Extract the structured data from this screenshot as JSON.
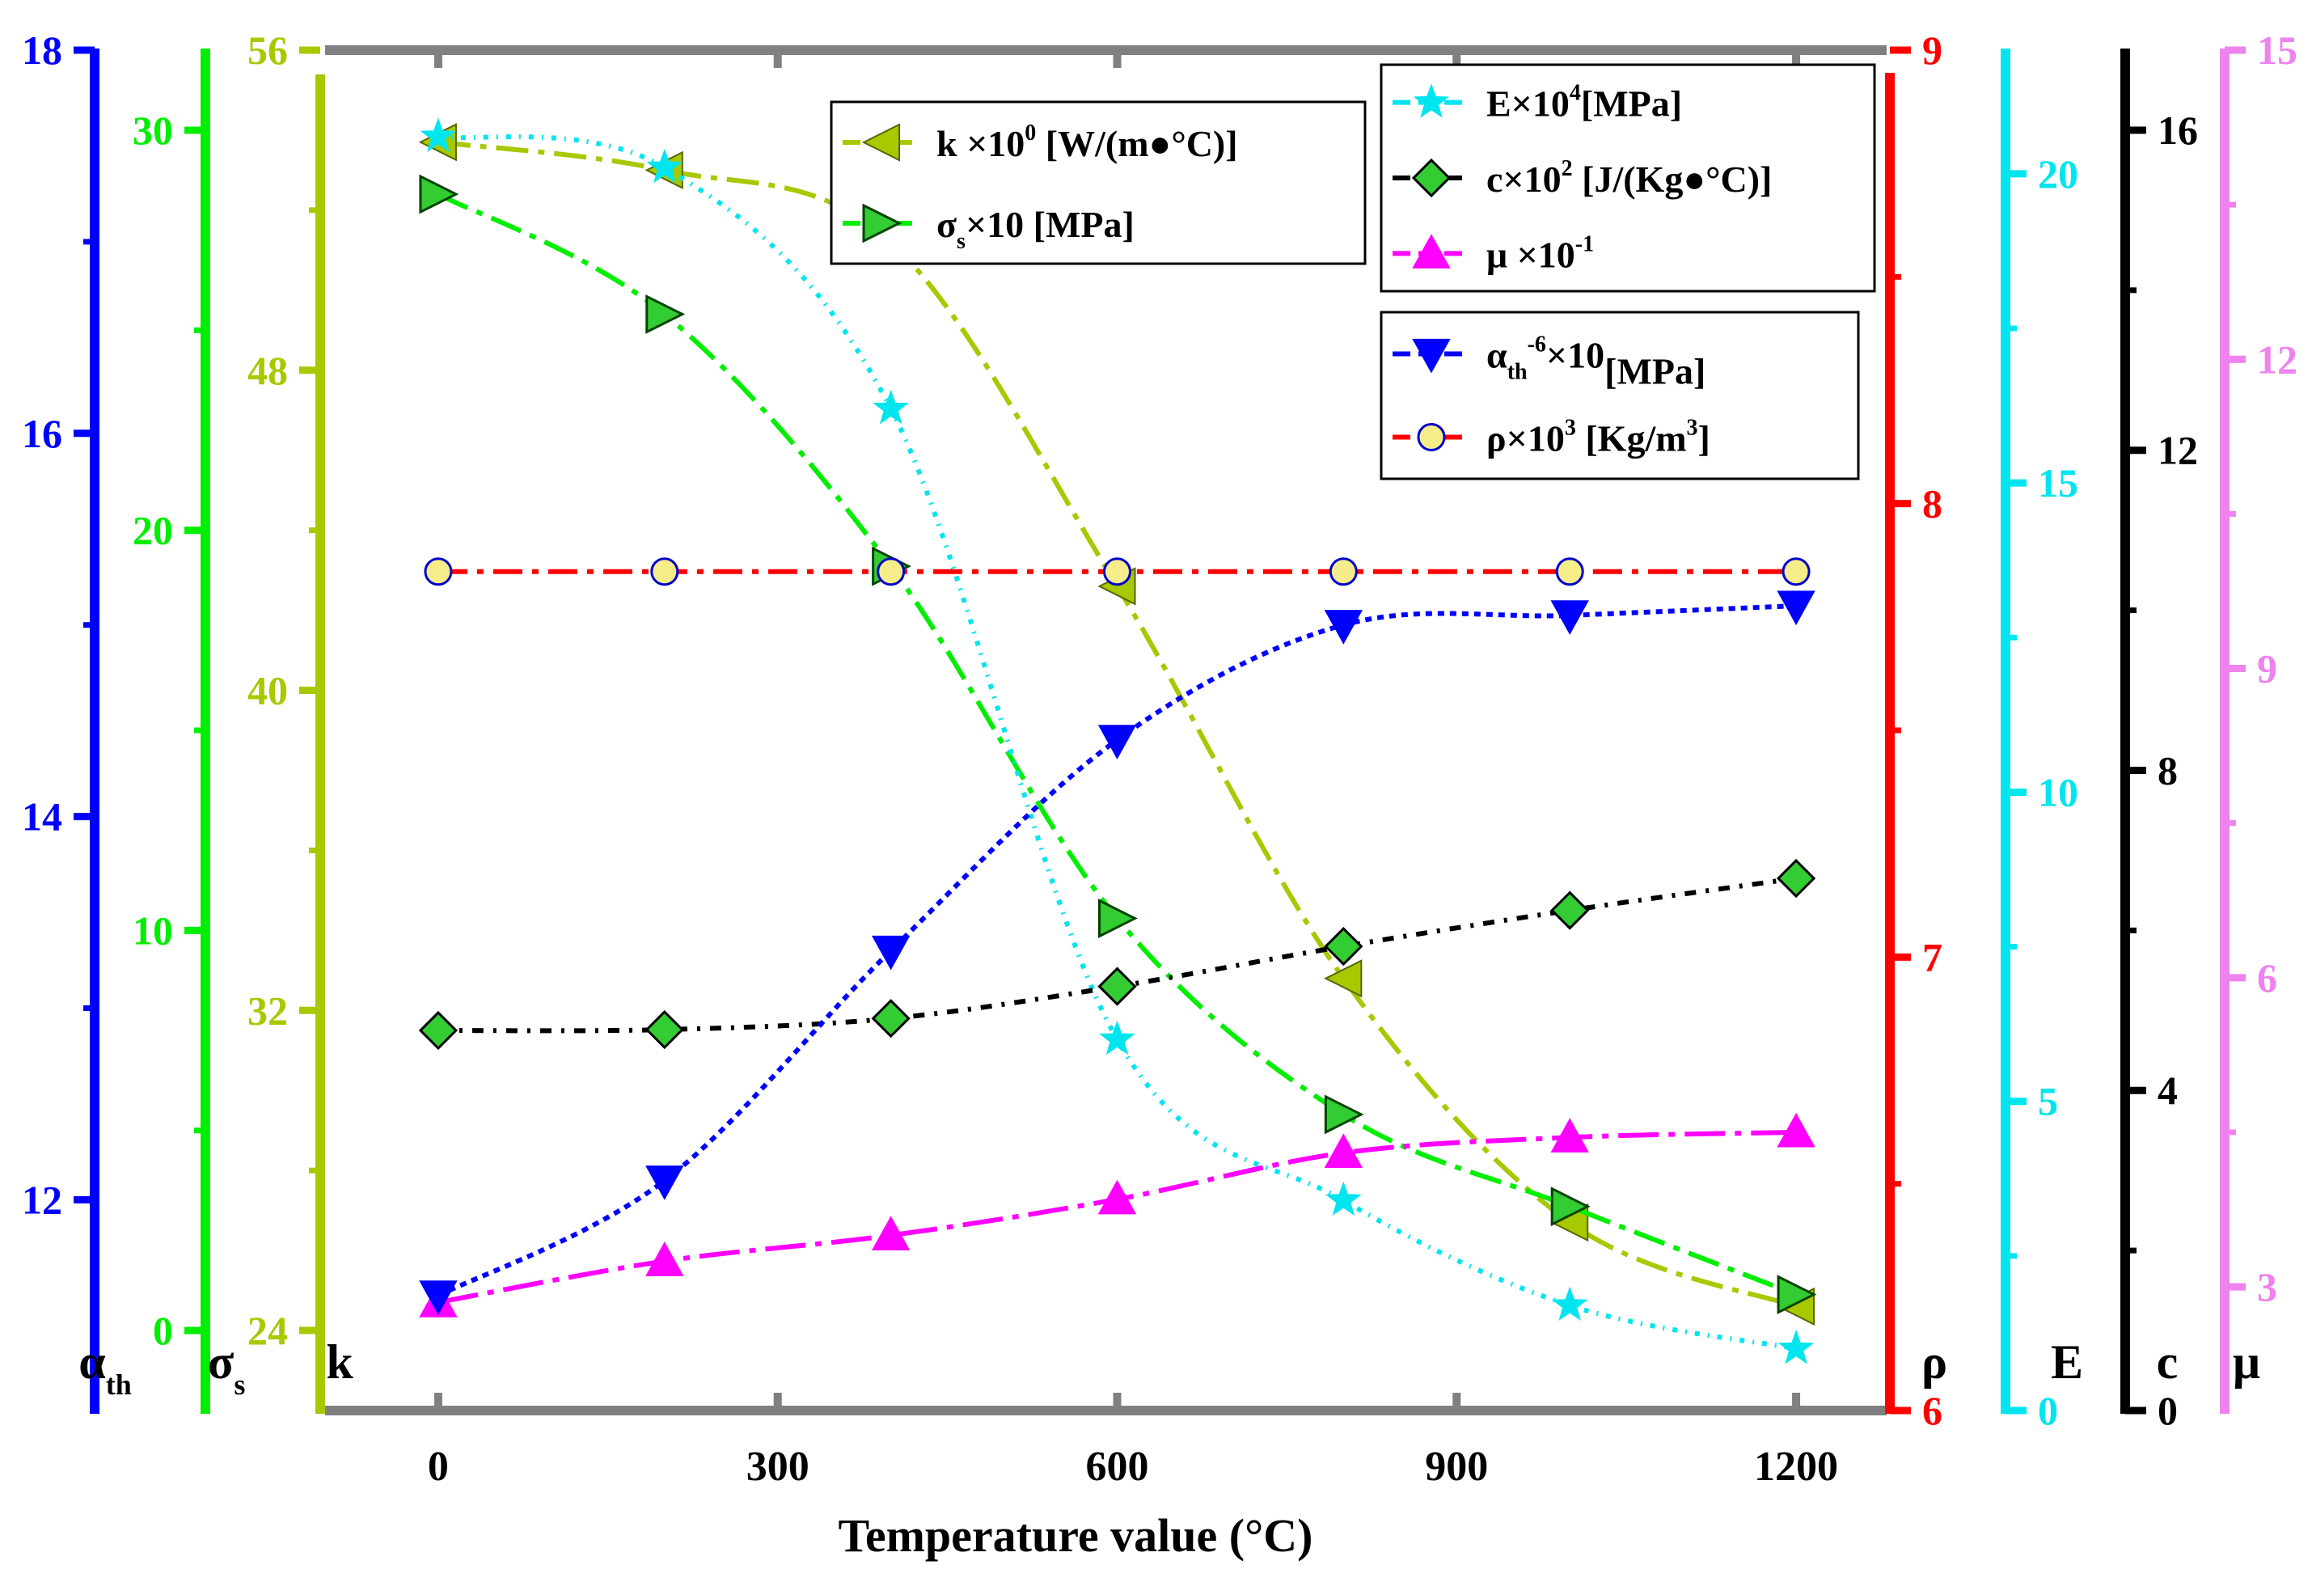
{
  "chart_data": {
    "type": "line",
    "xlabel": "Temperature value (°C)",
    "x": [
      0,
      200,
      400,
      600,
      800,
      1000,
      1200
    ],
    "x_ticks": [
      "0",
      "300",
      "600",
      "900",
      "1200"
    ],
    "x_tick_values": [
      0,
      300,
      600,
      900,
      1200
    ],
    "xlim": [
      -100,
      1280
    ],
    "axes": [
      {
        "id": "alpha",
        "side": "left",
        "sym": "α",
        "sub": "th",
        "color": "#0000ff",
        "lim": [
          10.9,
          18
        ],
        "ticks": [
          12,
          14,
          16,
          18
        ],
        "tick_labels": [
          "12",
          "14",
          "16",
          "18"
        ]
      },
      {
        "id": "sigma",
        "side": "left",
        "sym": "σ",
        "sub": "s",
        "color": "#00ee00",
        "lim": [
          -2,
          32
        ],
        "ticks": [
          0,
          10,
          20,
          30
        ],
        "tick_labels": [
          "0",
          "10",
          "20",
          "30"
        ]
      },
      {
        "id": "k",
        "side": "left",
        "sym": "k",
        "sub": "",
        "color": "#a8c800",
        "lim": [
          22,
          56
        ],
        "ticks": [
          24,
          32,
          40,
          48,
          56
        ],
        "tick_labels": [
          "24",
          "32",
          "40",
          "48",
          "56"
        ]
      },
      {
        "id": "rho",
        "side": "right",
        "sym": "ρ",
        "sub": "",
        "color": "#ff0000",
        "lim": [
          6,
          9
        ],
        "ticks": [
          6,
          7,
          8,
          9
        ],
        "tick_labels": [
          "6",
          "7",
          "8",
          "9"
        ]
      },
      {
        "id": "E",
        "side": "right",
        "sym": "E",
        "sub": "",
        "color": "#00e5ee",
        "lim": [
          0,
          22
        ],
        "ticks": [
          0,
          5,
          10,
          15,
          20
        ],
        "tick_labels": [
          "0",
          "5",
          "10",
          "15",
          "20"
        ]
      },
      {
        "id": "c",
        "side": "right",
        "sym": "c",
        "sub": "",
        "color": "#000000",
        "lim": [
          0,
          17
        ],
        "ticks": [
          0,
          4,
          8,
          12,
          16
        ],
        "tick_labels": [
          "0",
          "4",
          "8",
          "12",
          "16"
        ]
      },
      {
        "id": "mu",
        "side": "right",
        "sym": "μ",
        "sub": "",
        "color": "#ee82ee",
        "lim": [
          1.8,
          15
        ],
        "ticks": [
          3,
          6,
          9,
          12,
          15
        ],
        "tick_labels": [
          "3",
          "6",
          "9",
          "12",
          "15"
        ]
      }
    ],
    "series": [
      {
        "id": "k",
        "axis": "k",
        "color": "#a8c800",
        "marker": "triangle-left",
        "dash": "40,12,8,12",
        "values": [
          53.7,
          53,
          51.2,
          42.6,
          32.8,
          26.7,
          24.6
        ],
        "legend": {
          "pre": "k ×10",
          "sup": "0",
          "post": " [W/(m●°C)]"
        }
      },
      {
        "id": "sigma",
        "axis": "sigma",
        "color": "#00ee00",
        "marker": "triangle-right",
        "dash": "40,12,8,12",
        "values": [
          28.4,
          25.4,
          19.1,
          10.3,
          5.4,
          3.1,
          0.9
        ],
        "legend": {
          "pre": "σ",
          "sub": "s",
          "post": "×10  [MPa]"
        }
      },
      {
        "id": "E",
        "axis": "E",
        "color": "#00e5ee",
        "marker": "star",
        "dash": "6,10,2,10",
        "values": [
          20.6,
          20.1,
          16.2,
          6,
          3.4,
          1.7,
          1
        ],
        "legend": {
          "pre": "E×10",
          "sup": "4",
          "post": "[MPa]"
        }
      },
      {
        "id": "c",
        "axis": "c",
        "color": "#000000",
        "marker": "diamond",
        "dash": "14,12,4,12",
        "values": [
          4.75,
          4.76,
          4.9,
          5.3,
          5.8,
          6.25,
          6.65
        ],
        "legend": {
          "pre": "c×10",
          "sup": "2",
          "post": "  [J/(Kg●°C)]"
        }
      },
      {
        "id": "mu",
        "axis": "mu",
        "color": "#ff00ff",
        "marker": "triangle-up",
        "dash": "50,12,8,12",
        "values": [
          2.85,
          3.25,
          3.5,
          3.85,
          4.3,
          4.45,
          4.5
        ],
        "legend": {
          "pre": " μ ×10",
          "sup": "-1",
          "post": ""
        }
      },
      {
        "id": "alpha",
        "axis": "alpha",
        "color": "#0000ff",
        "marker": "triangle-down",
        "dash": "8,7",
        "values": [
          11.5,
          12.1,
          13.3,
          14.4,
          15,
          15.05,
          15.1
        ],
        "legend": {
          "pre": "α",
          "sub": "th",
          "post": "×10",
          "sup": "-6",
          "post2": "[MPa]"
        }
      },
      {
        "id": "rho",
        "axis": "rho",
        "color": "#ff0000",
        "marker": "circle",
        "dash": "36,12,8,12",
        "values": [
          7.85,
          7.85,
          7.85,
          7.85,
          7.85,
          7.85,
          7.85
        ],
        "legend": {
          "pre": "ρ×10",
          "sup": "3",
          "post": "   [Kg/m",
          "sup2": "3",
          "post2": "]"
        }
      }
    ],
    "legends": [
      [
        "k",
        "sigma"
      ],
      [
        "E",
        "c",
        "mu"
      ],
      [
        "alpha",
        "rho"
      ]
    ]
  }
}
